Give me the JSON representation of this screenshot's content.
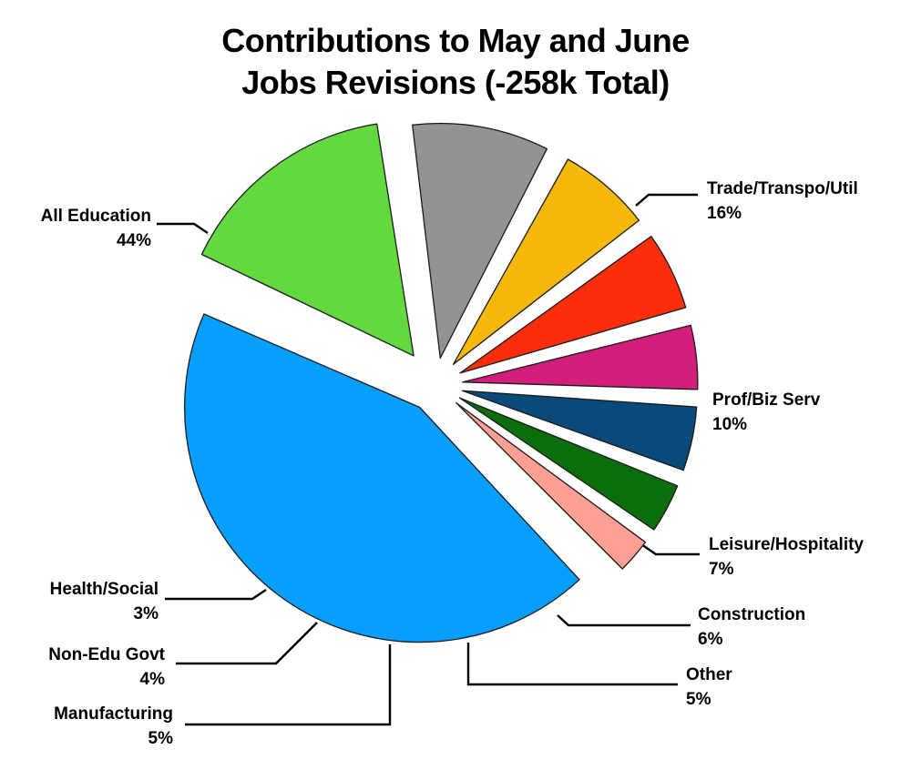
{
  "title_lines": [
    "Contributions to May and June",
    "Jobs Revisions (-258k Total)"
  ],
  "chart_data": {
    "type": "pie",
    "title": "Contributions to May and June Jobs Revisions (-258k Total)",
    "slices": [
      {
        "label": "Trade/Transpo/Util",
        "value": 16,
        "pct": "16%",
        "color": "#62d93d"
      },
      {
        "label": "Prof/Biz Serv",
        "value": 10,
        "pct": "10%",
        "color": "#939393"
      },
      {
        "label": "Leisure/Hospitality",
        "value": 7,
        "pct": "7%",
        "color": "#f6b90b"
      },
      {
        "label": "Construction",
        "value": 6,
        "pct": "6%",
        "color": "#fe2d0b"
      },
      {
        "label": "Other",
        "value": 5,
        "pct": "5%",
        "color": "#d41e7b"
      },
      {
        "label": "Manufacturing",
        "value": 5,
        "pct": "5%",
        "color": "#0a4a7a"
      },
      {
        "label": "Non-Edu Govt",
        "value": 4,
        "pct": "4%",
        "color": "#0a6e0a"
      },
      {
        "label": "Health/Social",
        "value": 3,
        "pct": "3%",
        "color": "#fd9f93"
      },
      {
        "label": "All Education",
        "value": 44,
        "pct": "44%",
        "color": "#079ffe"
      }
    ],
    "legend": "none",
    "labels": "callouts with leader lines"
  }
}
